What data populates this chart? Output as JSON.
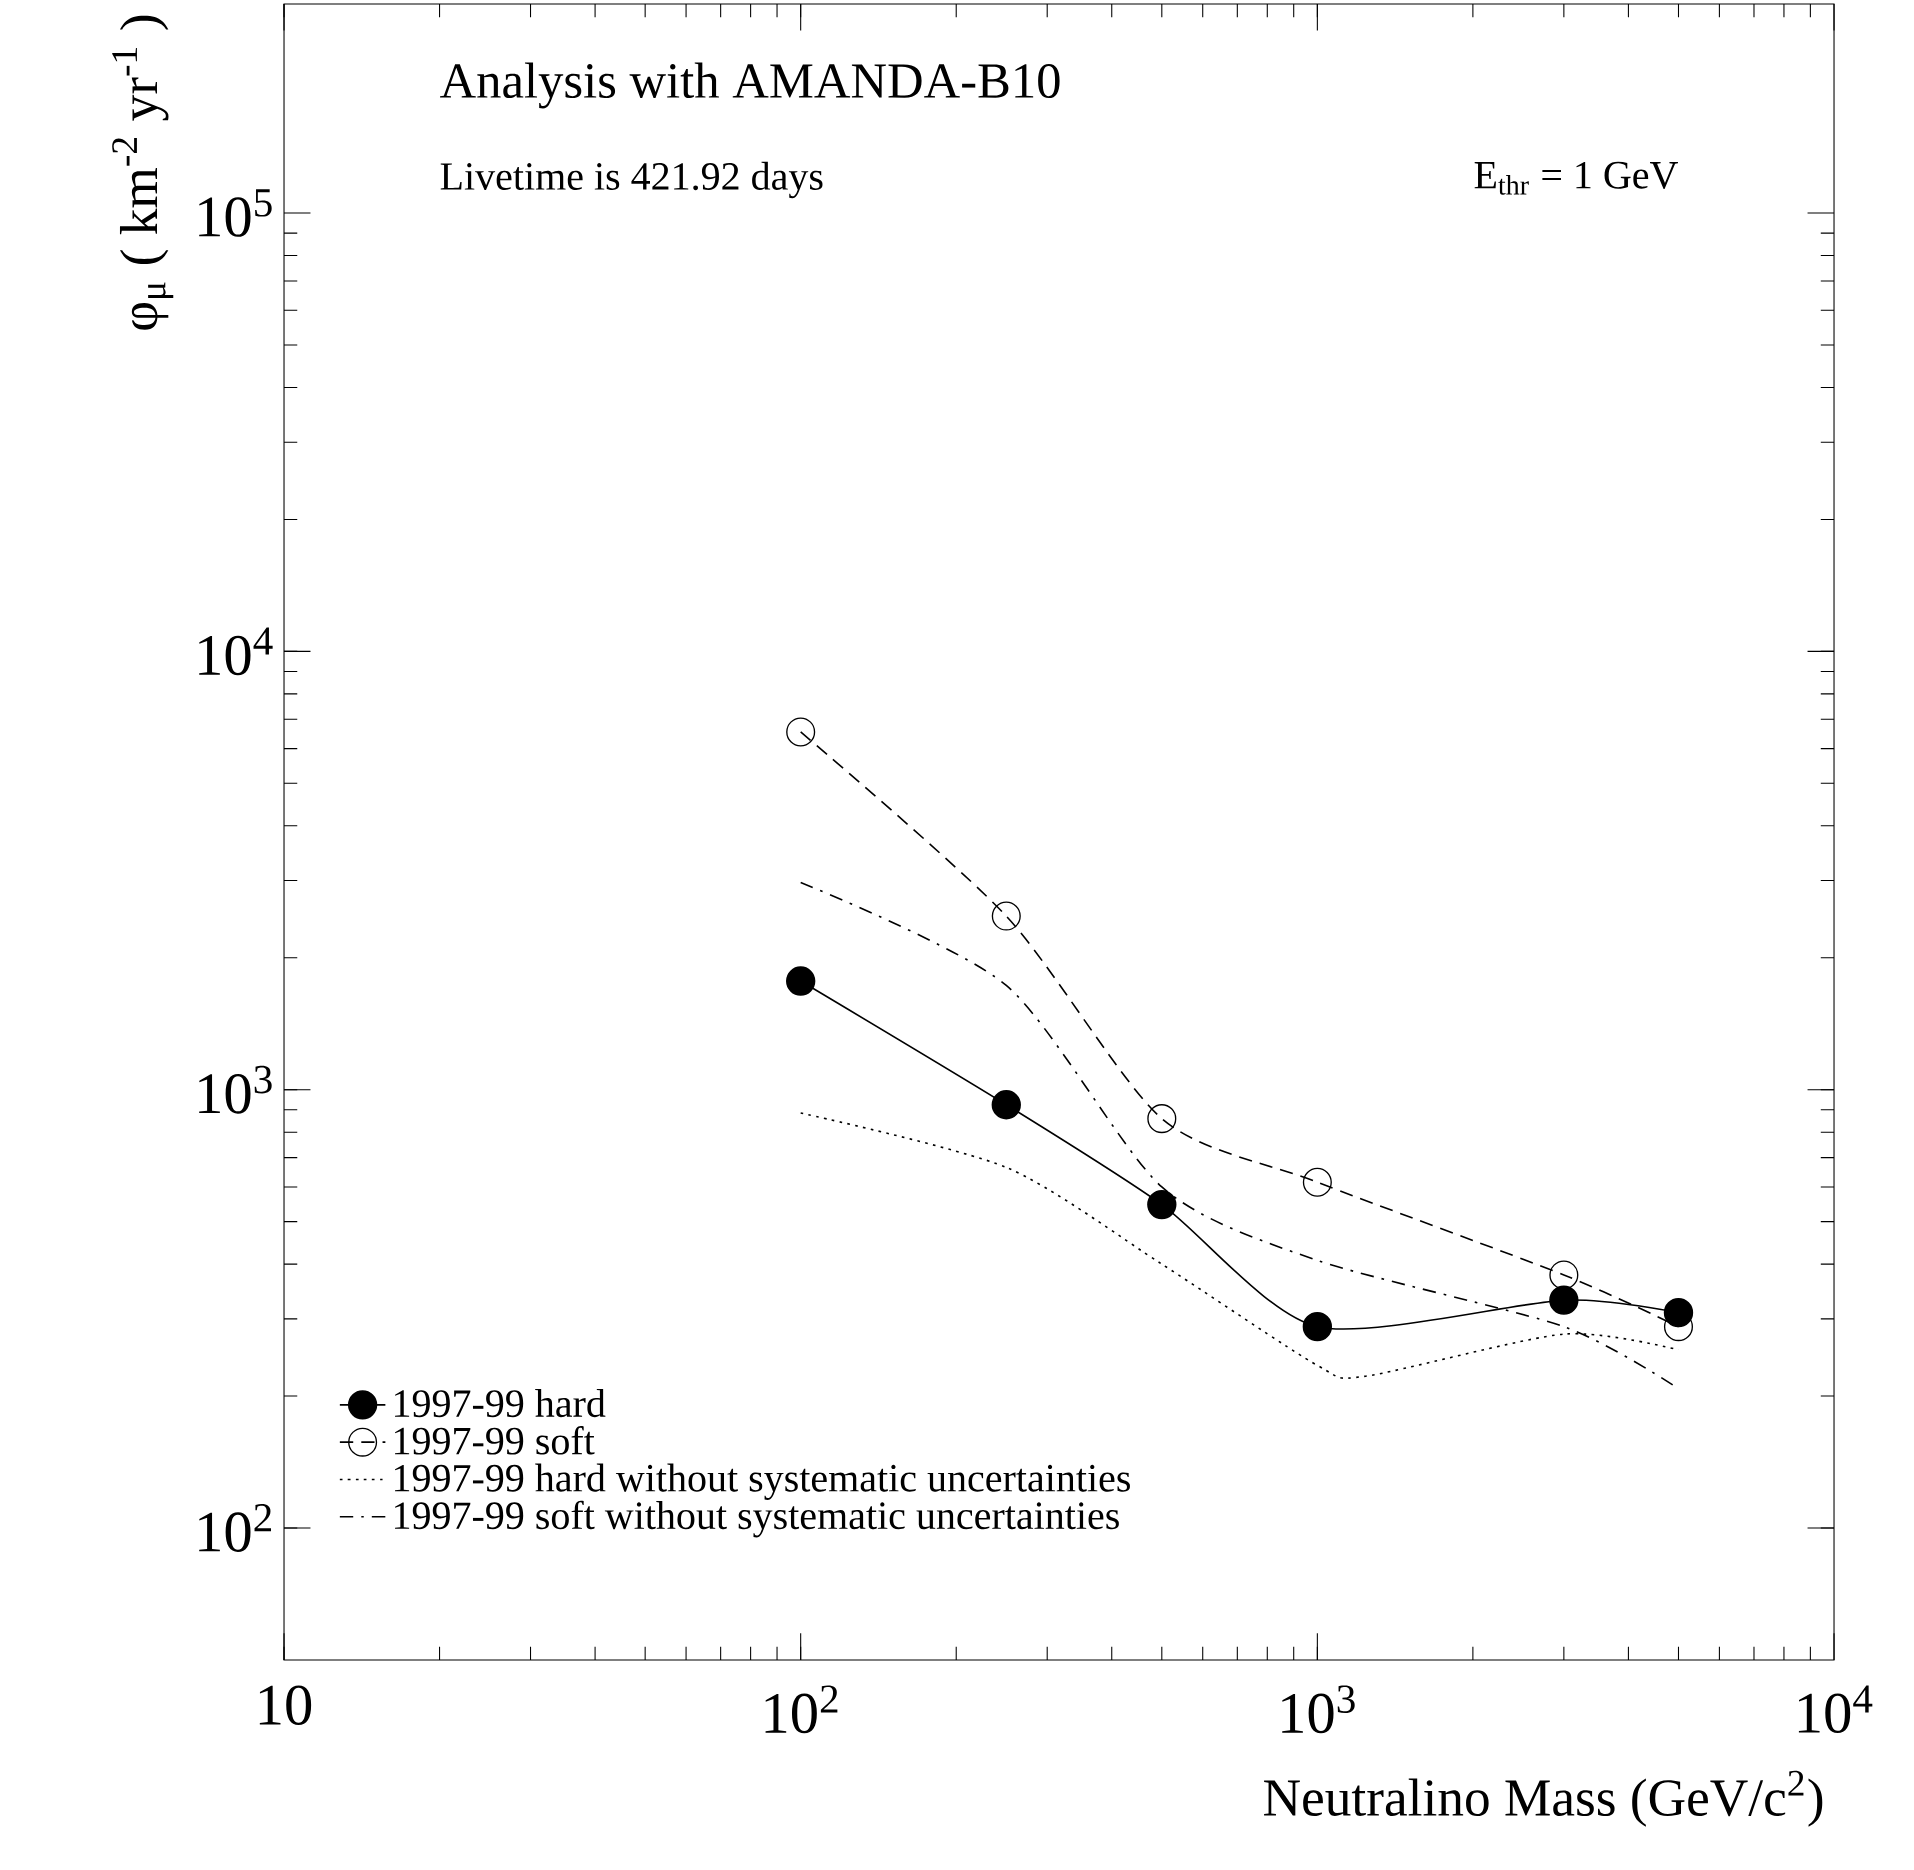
{
  "chart_data": {
    "type": "line",
    "xlabel": "Neutralino Mass (GeV/c$^{2}$)",
    "ylabel": "φ$_{μ}$ ( km$^{-2}$ yr$^{-1}$ )",
    "annotations": [
      "Analysis with AMANDA-B10",
      "Livetime is 421.92 days",
      "E$_{thr}$ = 1 GeV"
    ],
    "log": "xy",
    "xlim": [
      10,
      10000
    ],
    "ylim": [
      50,
      300000
    ],
    "xticks": [
      10,
      {
        "value": 100,
        "label": "10$^{2}$"
      },
      {
        "value": 1000,
        "label": "10$^{3}$"
      },
      {
        "value": 10000,
        "label": "10$^{4}$"
      }
    ],
    "yticks": [
      {
        "value": 100,
        "label": "10$^{2}$"
      },
      {
        "value": 1000,
        "label": "10$^{3}$"
      },
      {
        "value": 10000,
        "label": "10$^{4}$"
      },
      {
        "value": 100000,
        "label": "10$^{5}$"
      }
    ],
    "grid": false,
    "legend": "bottom left",
    "series": [
      {
        "name": "1997-99 hard",
        "color": "#000000",
        "marker": "circle",
        "line_style": "solid",
        "x": [
          100,
          250,
          500,
          1000,
          3000,
          5000
        ],
        "values": [
          1770,
          924,
          547,
          288,
          331,
          310
        ]
      },
      {
        "name": "1997-99 soft",
        "color": "#000000",
        "marker": "circle open",
        "line_style": "dashed",
        "x": [
          100,
          250,
          500,
          1000,
          3000,
          5000
        ],
        "values": [
          6550,
          2490,
          859,
          615,
          378,
          288
        ]
      },
      {
        "name": "1997-99 hard without systematic uncertainties",
        "color": "#000000",
        "marker": "none",
        "line_style": "dotted",
        "x": [
          100,
          250,
          500,
          1000,
          1240,
          3000,
          5000
        ],
        "values": [
          885,
          665,
          400,
          235,
          222,
          277,
          255
        ]
      },
      {
        "name": "1997-99 soft without systematic uncertainties",
        "color": "#000000",
        "marker": "none",
        "line_style": "dashdot",
        "x": [
          100,
          250,
          500,
          1000,
          3000,
          5000
        ],
        "values": [
          2970,
          1730,
          600,
          408,
          288,
          208
        ]
      }
    ]
  }
}
